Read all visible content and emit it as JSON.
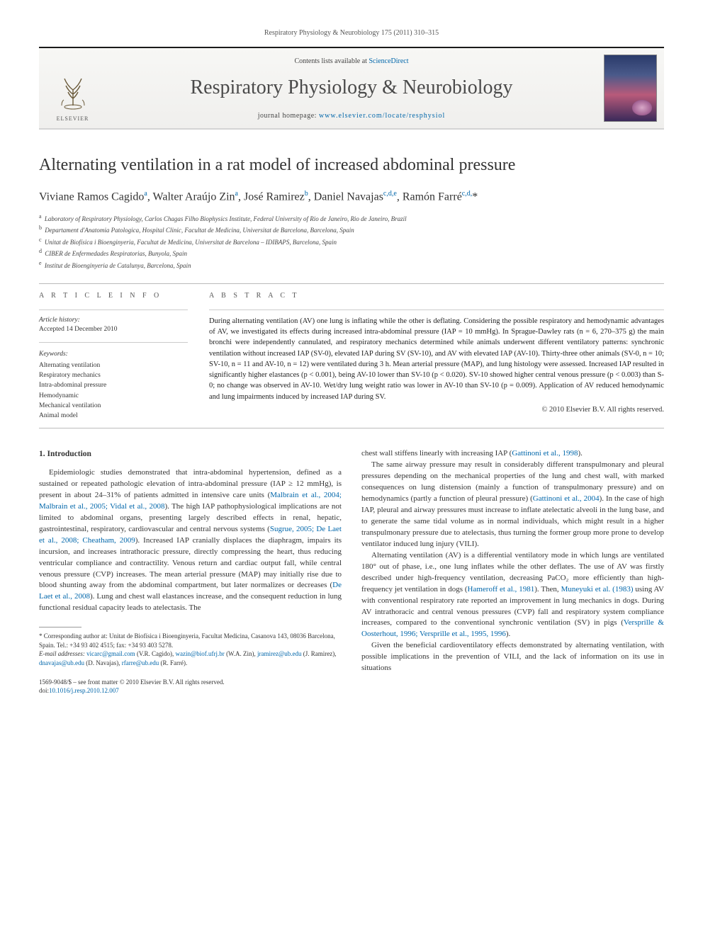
{
  "header": {
    "running_head": "Respiratory Physiology & Neurobiology 175 (2011) 310–315"
  },
  "masthead": {
    "contents_prefix": "Contents lists available at ",
    "contents_link_text": "ScienceDirect",
    "journal_name": "Respiratory Physiology & Neurobiology",
    "homepage_prefix": "journal homepage: ",
    "homepage_url_text": "www.elsevier.com/locate/resphysiol",
    "publisher_label": "ELSEVIER"
  },
  "article": {
    "title": "Alternating ventilation in a rat model of increased abdominal pressure",
    "authors_html": "Viviane Ramos Cagido<sup>a</sup>, Walter Araújo Zin<sup>a</sup>, José Ramirez<sup>b</sup>, Daniel Navajas<sup>c,d,e</sup>, Ramón Farré<sup>c,d,</sup>*",
    "affiliations": [
      "a Laboratory of Respiratory Physiology, Carlos Chagas Filho Biophysics Institute, Federal University of Rio de Janeiro, Rio de Janeiro, Brazil",
      "b Departament d'Anatomia Patologica, Hospital Clinic, Facultat de Medicina, Universitat de Barcelona, Barcelona, Spain",
      "c Unitat de Biofísica i Bioenginyeria, Facultat de Medicina, Universitat de Barcelona – IDIBAPS, Barcelona, Spain",
      "d CIBER de Enfermedades Respiratorias, Bunyola, Spain",
      "e Institut de Bioenginyeria de Catalunya, Barcelona, Spain"
    ]
  },
  "article_info": {
    "label": "A R T I C L E   I N F O",
    "history_label": "Article history:",
    "history_line": "Accepted 14 December 2010",
    "keywords_label": "Keywords:",
    "keywords": [
      "Alternating ventilation",
      "Respiratory mechanics",
      "Intra-abdominal pressure",
      "Hemodynamic",
      "Mechanical ventilation",
      "Animal model"
    ]
  },
  "abstract": {
    "label": "A B S T R A C T",
    "text": "During alternating ventilation (AV) one lung is inflating while the other is deflating. Considering the possible respiratory and hemodynamic advantages of AV, we investigated its effects during increased intra-abdominal pressure (IAP = 10 mmHg). In Sprague-Dawley rats (n = 6, 270–375 g) the main bronchi were independently cannulated, and respiratory mechanics determined while animals underwent different ventilatory patterns: synchronic ventilation without increased IAP (SV-0), elevated IAP during SV (SV-10), and AV with elevated IAP (AV-10). Thirty-three other animals (SV-0, n = 10; SV-10, n = 11 and AV-10, n = 12) were ventilated during 3 h. Mean arterial pressure (MAP), and lung histology were assessed. Increased IAP resulted in significantly higher elastances (p < 0.001), being AV-10 lower than SV-10 (p < 0.020). SV-10 showed higher central venous pressure (p < 0.003) than S-0; no change was observed in AV-10. Wet/dry lung weight ratio was lower in AV-10 than SV-10 (p = 0.009). Application of AV reduced hemodynamic and lung impairments induced by increased IAP during SV.",
    "copyright": "© 2010 Elsevier B.V. All rights reserved."
  },
  "body": {
    "intro_heading": "1.  Introduction",
    "col1_p1a": "Epidemiologic studies demonstrated that intra-abdominal hypertension, defined as a sustained or repeated pathologic elevation of intra-abdominal pressure (IAP ≥ 12 mmHg), is present in about 24–31% of patients admitted in intensive care units (",
    "col1_ref1": "Malbrain et al., 2004; Malbrain et al., 2005; Vidal et al., 2008",
    "col1_p1b": "). The high IAP pathophysiological implications are not limited to abdominal organs, presenting largely described effects in renal, hepatic, gastrointestinal, respiratory, cardiovascular and central nervous systems (",
    "col1_ref2": "Sugrue, 2005; De Laet et al., 2008; Cheatham, 2009",
    "col1_p1c": "). Increased IAP cranially displaces the diaphragm, impairs its incursion, and increases intrathoracic pressure, directly compressing the heart, thus reducing ventricular compliance and contractility. Venous return and cardiac output fall, while central venous pressure (CVP) increases. The mean arterial pressure (MAP) may initially rise due to blood shunting away from the abdominal compartment, but later normalizes or decreases (",
    "col1_ref3": "De Laet et al., 2008",
    "col1_p1d": "). Lung and chest wall elastances increase, and the consequent reduction in lung functional residual capacity leads to atelectasis. The",
    "col2_p1a": "chest wall stiffens linearly with increasing IAP (",
    "col2_ref1": "Gattinoni et al., 1998",
    "col2_p1b": ").",
    "col2_p2a": "The same airway pressure may result in considerably different transpulmonary and pleural pressures depending on the mechanical properties of the lung and chest wall, with marked consequences on lung distension (mainly a function of transpulmonary pressure) and on hemodynamics (partly a function of pleural pressure) (",
    "col2_ref2": "Gattinoni et al., 2004",
    "col2_p2b": "). In the case of high IAP, pleural and airway pressures must increase to inflate atelectatic alveoli in the lung base, and to generate the same tidal volume as in normal individuals, which might result in a higher transpulmonary pressure due to atelectasis, thus turning the former group more prone to develop ventilator induced lung injury (VILI).",
    "col2_p3a": "Alternating ventilation (AV) is a differential ventilatory mode in which lungs are ventilated 180° out of phase, i.e., one lung inflates while the other deflates. The use of AV was firstly described under high-frequency ventilation, decreasing PaCO₂ more efficiently than high-frequency jet ventilation in dogs (",
    "col2_ref3": "Hameroff et al., 1981",
    "col2_p3b": "). Then, ",
    "col2_ref4": "Muneyuki et al. (1983)",
    "col2_p3c": " using AV with conventional respiratory rate reported an improvement in lung mechanics in dogs. During AV intrathoracic and central venous pressures (CVP) fall and respiratory system compliance increases, compared to the conventional synchronic ventilation (SV) in pigs (",
    "col2_ref5": "Versprille & Oosterhout, 1996; Versprille et al., 1995, 1996",
    "col2_p3d": ").",
    "col2_p4": "Given the beneficial cardioventilatory effects demonstrated by alternating ventilation, with possible implications in the prevention of VILI, and the lack of information on its use in situations"
  },
  "footnotes": {
    "corr_label": "* Corresponding author at: Unitat de Biofísica i Bioenginyeria, Facultat Medicina, Casanova 143, 08036 Barcelona, Spain. Tel.: +34 93 402 4515; fax: +34 93 403 5278.",
    "email_label": "E-mail addresses: ",
    "emails": [
      {
        "addr": "vicarc@gmail.com",
        "who": "(V.R. Cagido)"
      },
      {
        "addr": "wazin@biof.ufrj.br",
        "who": "(W.A. Zin)"
      },
      {
        "addr": "jramirez@ub.edu",
        "who": "(J. Ramirez)"
      },
      {
        "addr": "dnavajas@ub.edu",
        "who": "(D. Navajas)"
      },
      {
        "addr": "rfarre@ub.edu",
        "who": "(R. Farré)."
      }
    ]
  },
  "footer": {
    "issn_line": "1569-9048/$ – see front matter © 2010 Elsevier B.V. All rights reserved.",
    "doi_prefix": "doi:",
    "doi": "10.1016/j.resp.2010.12.007"
  },
  "colors": {
    "link": "#0066aa",
    "text": "#333333",
    "rule": "#bbbbbb"
  }
}
